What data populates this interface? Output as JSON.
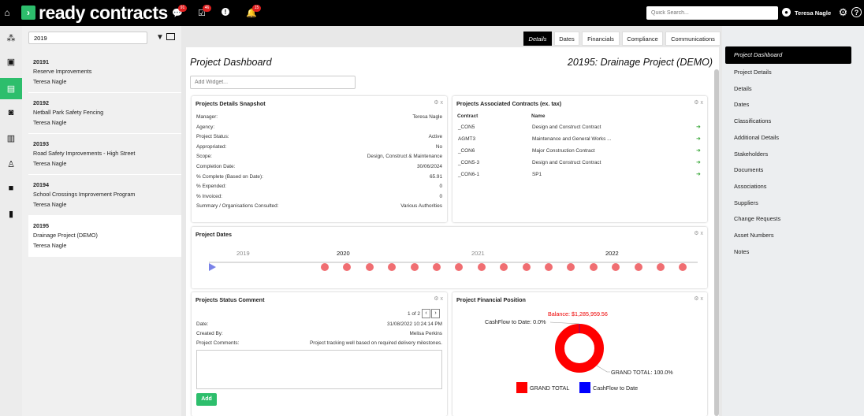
{
  "app": {
    "brand": "ready contracts",
    "search_placeholder": "Quick Search...",
    "user": "Teresa Nagle",
    "badges": {
      "messages": "91",
      "tasks": "46",
      "alerts": "15"
    }
  },
  "sidebar_search": {
    "value": "2019"
  },
  "projects": [
    {
      "code": "20191",
      "name": "Reserve Improvements",
      "owner": "Teresa Nagle"
    },
    {
      "code": "20192",
      "name": "Netball Park Safety Fencing",
      "owner": "Teresa Nagle"
    },
    {
      "code": "20193",
      "name": "Road Safety Improvements - High Street",
      "owner": "Teresa Nagle"
    },
    {
      "code": "20194",
      "name": "School Crossings Improvement Program",
      "owner": "Teresa Nagle"
    },
    {
      "code": "20195",
      "name": "Drainage Project (DEMO)",
      "owner": "Teresa Nagle"
    }
  ],
  "tabs": [
    "Details",
    "Dates",
    "Financials",
    "Compliance",
    "Communications"
  ],
  "dashboard": {
    "title": "Project Dashboard",
    "project_title": "20195: Drainage Project (DEMO)",
    "add_widget_placeholder": "Add Widget..."
  },
  "snapshot": {
    "title": "Projects Details Snapshot",
    "rows": [
      {
        "label": "Manager:",
        "value": "Teresa Nagle"
      },
      {
        "label": "Agency:",
        "value": ""
      },
      {
        "label": "Project Status:",
        "value": "Active"
      },
      {
        "label": "Appropriated:",
        "value": "No"
      },
      {
        "label": "Scope:",
        "value": "Design, Construct & Maintenance"
      },
      {
        "label": "Completion Date:",
        "value": "30/06/2024"
      },
      {
        "label": "% Complete (Based on Date):",
        "value": "65.91"
      },
      {
        "label": "% Expended:",
        "value": "0"
      },
      {
        "label": "% Invoiced:",
        "value": "0"
      },
      {
        "label": "Summary / Organisations Consulted:",
        "value": "Various Authorities"
      }
    ]
  },
  "contracts": {
    "title": "Projects Associated Contracts (ex. tax)",
    "headers": [
      "Contract",
      "Name"
    ],
    "rows": [
      {
        "contract": "_CON5",
        "name": "Design and Construct Contract"
      },
      {
        "contract": "AGMT3",
        "name": "Maintenance and General Works ..."
      },
      {
        "contract": "_CON6",
        "name": "Major Construction Contract"
      },
      {
        "contract": "_CON5-3",
        "name": "Design and Construct Contract"
      },
      {
        "contract": "_CON6-1",
        "name": "SP1"
      }
    ]
  },
  "dates": {
    "title": "Project Dates",
    "years": [
      "2019",
      "2020",
      "2021",
      "2022"
    ]
  },
  "status_comment": {
    "title": "Projects Status Comment",
    "pager": "1 of 2",
    "date_label": "Date:",
    "date": "31/08/2022 10:24:14 PM",
    "created_label": "Created By:",
    "created_by": "Melisa Perkins",
    "comments_label": "Project Comments:",
    "comments": "Project tracking well based on required delivery milestones.",
    "add_label": "Add"
  },
  "financial": {
    "title": "Project Financial Position",
    "balance": "Balance: $1,285,959.56",
    "cashflow_label": "CashFlow to Date: 0.0%",
    "grand_label": "GRAND TOTAL: 100.0%",
    "legend": [
      {
        "name": "GRAND TOTAL",
        "color": "#ff0000"
      },
      {
        "name": "CashFlow to Date",
        "color": "#0000ff"
      }
    ]
  },
  "chart_data": {
    "type": "pie",
    "title": "Project Financial Position",
    "categories": [
      "GRAND TOTAL",
      "CashFlow to Date"
    ],
    "values": [
      100.0,
      0.0
    ],
    "subtitle": "Balance: $1,285,959.56"
  },
  "right_nav": [
    "Project Dashboard",
    "Project Details",
    "Details",
    "Dates",
    "Classifications",
    "Additional Details",
    "Stakeholders",
    "Documents",
    "Associations",
    "Suppliers",
    "Change Requests",
    "Asset Numbers",
    "Notes"
  ]
}
